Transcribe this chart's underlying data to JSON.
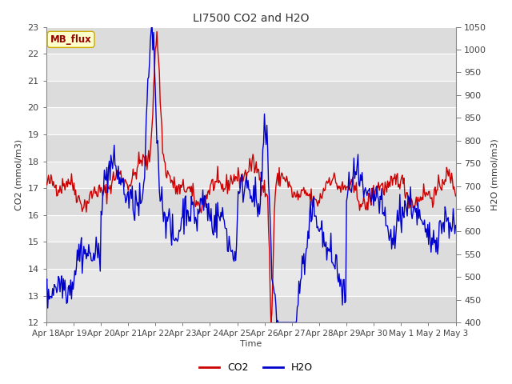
{
  "title": "LI7500 CO2 and H2O",
  "xlabel": "Time",
  "ylabel_left": "CO2 (mmol/m3)",
  "ylabel_right": "H2O (mmol/m3)",
  "annotation_text": "MB_flux",
  "annotation_bg": "#ffffcc",
  "annotation_border": "#ccaa00",
  "co2_color": "#cc0000",
  "h2o_color": "#0000cc",
  "fig_bg_color": "#ffffff",
  "plot_bg_color": "#e8e8e8",
  "grid_color": "#ffffff",
  "band_color_light": "#e0e0e0",
  "band_color_dark": "#d0d0d0",
  "ylim_left": [
    12.0,
    23.0
  ],
  "ylim_right": [
    400,
    1050
  ],
  "yticks_left": [
    12.0,
    13.0,
    14.0,
    15.0,
    16.0,
    17.0,
    18.0,
    19.0,
    20.0,
    21.0,
    22.0,
    23.0
  ],
  "yticks_right": [
    400,
    450,
    500,
    550,
    600,
    650,
    700,
    750,
    800,
    850,
    900,
    950,
    1000,
    1050
  ],
  "xtick_labels": [
    "Apr 18",
    "Apr 19",
    "Apr 20",
    "Apr 21",
    "Apr 22",
    "Apr 23",
    "Apr 24",
    "Apr 25",
    "Apr 26",
    "Apr 27",
    "Apr 28",
    "Apr 29",
    "Apr 30",
    "May 1",
    "May 2",
    "May 3"
  ],
  "title_fontsize": 10,
  "axis_label_fontsize": 8,
  "tick_fontsize": 8,
  "legend_fontsize": 9,
  "linewidth": 1.0,
  "n_points": 500
}
